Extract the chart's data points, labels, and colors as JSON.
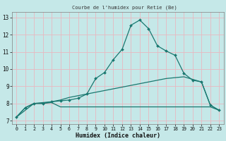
{
  "title": "Courbe de l'humidex pour Retie (Be)",
  "xlabel": "Humidex (Indice chaleur)",
  "bg_color": "#c5e8e8",
  "grid_color": "#e8b8c0",
  "line_color": "#1a7870",
  "xlim": [
    -0.5,
    23.5
  ],
  "ylim": [
    6.8,
    13.3
  ],
  "xticks": [
    0,
    1,
    2,
    3,
    4,
    5,
    6,
    7,
    8,
    9,
    10,
    11,
    12,
    13,
    14,
    15,
    16,
    17,
    18,
    19,
    20,
    21,
    22,
    23
  ],
  "yticks": [
    7,
    8,
    9,
    10,
    11,
    12,
    13
  ],
  "line1_x": [
    0,
    1,
    2,
    3,
    4,
    5,
    6,
    7,
    8,
    9,
    10,
    11,
    12,
    13,
    14,
    15,
    16,
    17,
    18,
    19,
    20,
    21,
    22,
    23
  ],
  "line1_y": [
    7.2,
    7.75,
    8.0,
    8.0,
    8.1,
    8.15,
    8.2,
    8.3,
    8.55,
    9.45,
    9.8,
    10.55,
    11.15,
    12.55,
    12.85,
    12.35,
    11.35,
    11.05,
    10.8,
    9.75,
    9.35,
    9.25,
    7.9,
    7.6
  ],
  "line2_x": [
    0,
    2,
    3,
    4,
    5,
    22,
    23
  ],
  "line2_y": [
    7.2,
    8.0,
    8.0,
    8.05,
    7.8,
    7.8,
    7.6
  ],
  "line3_x": [
    0,
    1,
    2,
    3,
    4,
    5,
    6,
    7,
    8,
    9,
    10,
    11,
    12,
    13,
    14,
    15,
    16,
    17,
    18,
    19,
    20,
    21,
    22,
    23
  ],
  "line3_y": [
    7.2,
    7.75,
    8.0,
    8.05,
    8.1,
    8.2,
    8.35,
    8.45,
    8.55,
    8.65,
    8.75,
    8.85,
    8.95,
    9.05,
    9.15,
    9.25,
    9.35,
    9.45,
    9.5,
    9.55,
    9.4,
    9.25,
    7.9,
    7.6
  ]
}
